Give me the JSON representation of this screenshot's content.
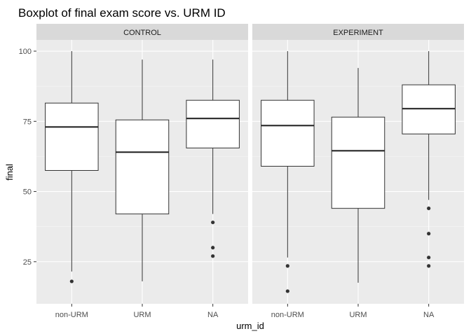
{
  "chart_data": {
    "type": "boxplot",
    "title": "Boxplot of final exam score vs. URM ID",
    "xlabel": "urm_id",
    "ylabel": "final",
    "categories": [
      "non-URM",
      "URM",
      "NA"
    ],
    "y_ticks": [
      25,
      50,
      75,
      100
    ],
    "ylim": [
      10,
      104
    ],
    "grid": true,
    "panels": [
      {
        "name": "CONTROL",
        "boxes": [
          {
            "category": "non-URM",
            "lower_whisker": 21.5,
            "q1": 57.5,
            "median": 73,
            "q3": 81.5,
            "upper_whisker": 100,
            "outliers": [
              18
            ]
          },
          {
            "category": "URM",
            "lower_whisker": 18,
            "q1": 42,
            "median": 64,
            "q3": 75.5,
            "upper_whisker": 97,
            "outliers": []
          },
          {
            "category": "NA",
            "lower_whisker": 42,
            "q1": 65.5,
            "median": 76,
            "q3": 82.5,
            "upper_whisker": 97,
            "outliers": [
              39,
              30,
              27
            ]
          }
        ]
      },
      {
        "name": "EXPERIMENT",
        "boxes": [
          {
            "category": "non-URM",
            "lower_whisker": 26.5,
            "q1": 59,
            "median": 73.5,
            "q3": 82.5,
            "upper_whisker": 100,
            "outliers": [
              23.5,
              14.5
            ]
          },
          {
            "category": "URM",
            "lower_whisker": 17.5,
            "q1": 44,
            "median": 64.5,
            "q3": 76.5,
            "upper_whisker": 94,
            "outliers": []
          },
          {
            "category": "NA",
            "lower_whisker": 47,
            "q1": 70.5,
            "median": 79.5,
            "q3": 88,
            "upper_whisker": 100,
            "outliers": [
              44,
              35,
              26.5,
              23.5
            ]
          }
        ]
      }
    ]
  }
}
